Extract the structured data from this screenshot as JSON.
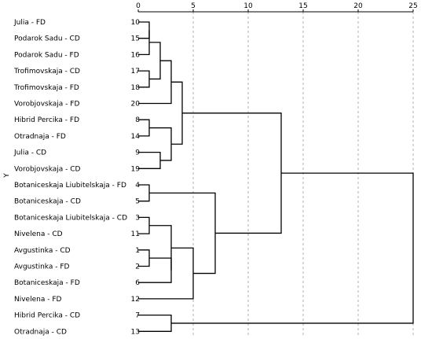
{
  "chart_data": {
    "type": "dendrogram",
    "axis_label": "Y",
    "x_ticks": [
      0,
      5,
      10,
      15,
      20,
      25
    ],
    "xlim": [
      0,
      25
    ],
    "leaves": [
      {
        "label": "Julia - FD",
        "case": "10"
      },
      {
        "label": "Podarok Sadu - CD",
        "case": "15"
      },
      {
        "label": "Podarok Sadu - FD",
        "case": "16"
      },
      {
        "label": "Trofimovskaja - CD",
        "case": "17"
      },
      {
        "label": "Trofimovskaja - FD",
        "case": "18"
      },
      {
        "label": "Vorobjovskaja - FD",
        "case": "20"
      },
      {
        "label": "Hibrid Percika - FD",
        "case": "8"
      },
      {
        "label": "Otradnaja - FD",
        "case": "14"
      },
      {
        "label": "Julia - CD",
        "case": "9"
      },
      {
        "label": "Vorobjovskaja - CD",
        "case": "19"
      },
      {
        "label": "Botaniceskaja Liubitelskaja - FD",
        "case": "4"
      },
      {
        "label": "Botaniceskaja - CD",
        "case": "5"
      },
      {
        "label": "Botaniceskaja Liubitelskaja - CD",
        "case": "3"
      },
      {
        "label": "Nivelena - CD",
        "case": "11"
      },
      {
        "label": "Avgustinka - CD",
        "case": "1"
      },
      {
        "label": "Avgustinka - FD",
        "case": "2"
      },
      {
        "label": "Botaniceskaja - FD",
        "case": "6"
      },
      {
        "label": "Nivelena - FD",
        "case": "12"
      },
      {
        "label": "Hibrid Percika - CD",
        "case": "7"
      },
      {
        "label": "Otradnaja - CD",
        "case": "13"
      }
    ],
    "merges": [
      {
        "a": 0,
        "b": 1,
        "height": 1.0
      },
      {
        "a": 2,
        "b": 20,
        "height": 1.0
      },
      {
        "a": 3,
        "b": 4,
        "height": 1.0
      },
      {
        "a": 21,
        "b": 22,
        "height": 2.0
      },
      {
        "a": 23,
        "b": 5,
        "height": 3.0
      },
      {
        "a": 6,
        "b": 7,
        "height": 1.0
      },
      {
        "a": 8,
        "b": 9,
        "height": 2.0
      },
      {
        "a": 25,
        "b": 26,
        "height": 3.0
      },
      {
        "a": 24,
        "b": 27,
        "height": 4.0
      },
      {
        "a": 10,
        "b": 11,
        "height": 1.0
      },
      {
        "a": 14,
        "b": 15,
        "height": 1.0
      },
      {
        "a": 30,
        "b": 16,
        "height": 3.0
      },
      {
        "a": 12,
        "b": 13,
        "height": 1.0
      },
      {
        "a": 32,
        "b": 31,
        "height": 3.0
      },
      {
        "a": 33,
        "b": 17,
        "height": 5.0
      },
      {
        "a": 29,
        "b": 34,
        "height": 7.0
      },
      {
        "a": 28,
        "b": 35,
        "height": 13.0
      },
      {
        "a": 18,
        "b": 19,
        "height": 3.0
      },
      {
        "a": 36,
        "b": 37,
        "height": 25.0
      }
    ]
  }
}
